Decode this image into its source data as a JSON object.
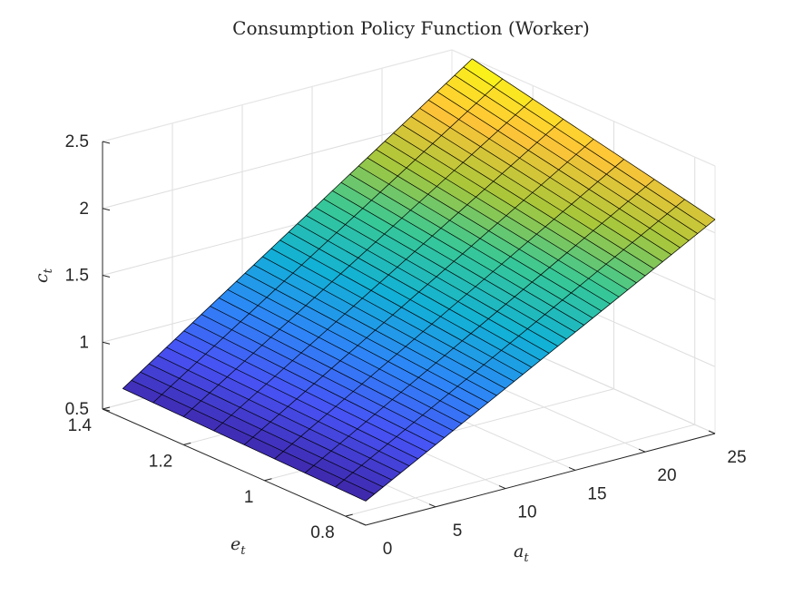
{
  "chart_data": {
    "type": "surface",
    "title": "Consumption Policy Function (Worker)",
    "xlabel": "a",
    "xlabel_sub": "t",
    "ylabel": "e",
    "ylabel_sub": "t",
    "zlabel": "c",
    "zlabel_sub": "t",
    "x_range": [
      0,
      25
    ],
    "y_range": [
      0.75,
      1.4
    ],
    "z_range": [
      0.5,
      2.5
    ],
    "x_ticks": [
      0,
      5,
      10,
      15,
      20,
      25
    ],
    "y_ticks": [
      0.8,
      1,
      1.2,
      1.4
    ],
    "z_ticks": [
      0.5,
      1,
      1.5,
      2,
      2.5
    ],
    "x_tick_labels": [
      "0",
      "5",
      "10",
      "15",
      "20",
      "25"
    ],
    "y_tick_labels": [
      "0.8",
      "1",
      "1.2",
      "1.4"
    ],
    "z_tick_labels": [
      "0.5",
      "1",
      "1.5",
      "2",
      "2.5"
    ],
    "grid": true,
    "colormap": "parula",
    "surface": {
      "a": [
        0,
        25
      ],
      "e": [
        0.75,
        1.35
      ],
      "c_corners": {
        "a0_e_low": 0.68,
        "a0_e_high": 0.72,
        "a25_e_low": 2.1,
        "a25_e_high": 2.5
      },
      "a_grid_lines": 40,
      "e_grid_lines": 8
    }
  }
}
